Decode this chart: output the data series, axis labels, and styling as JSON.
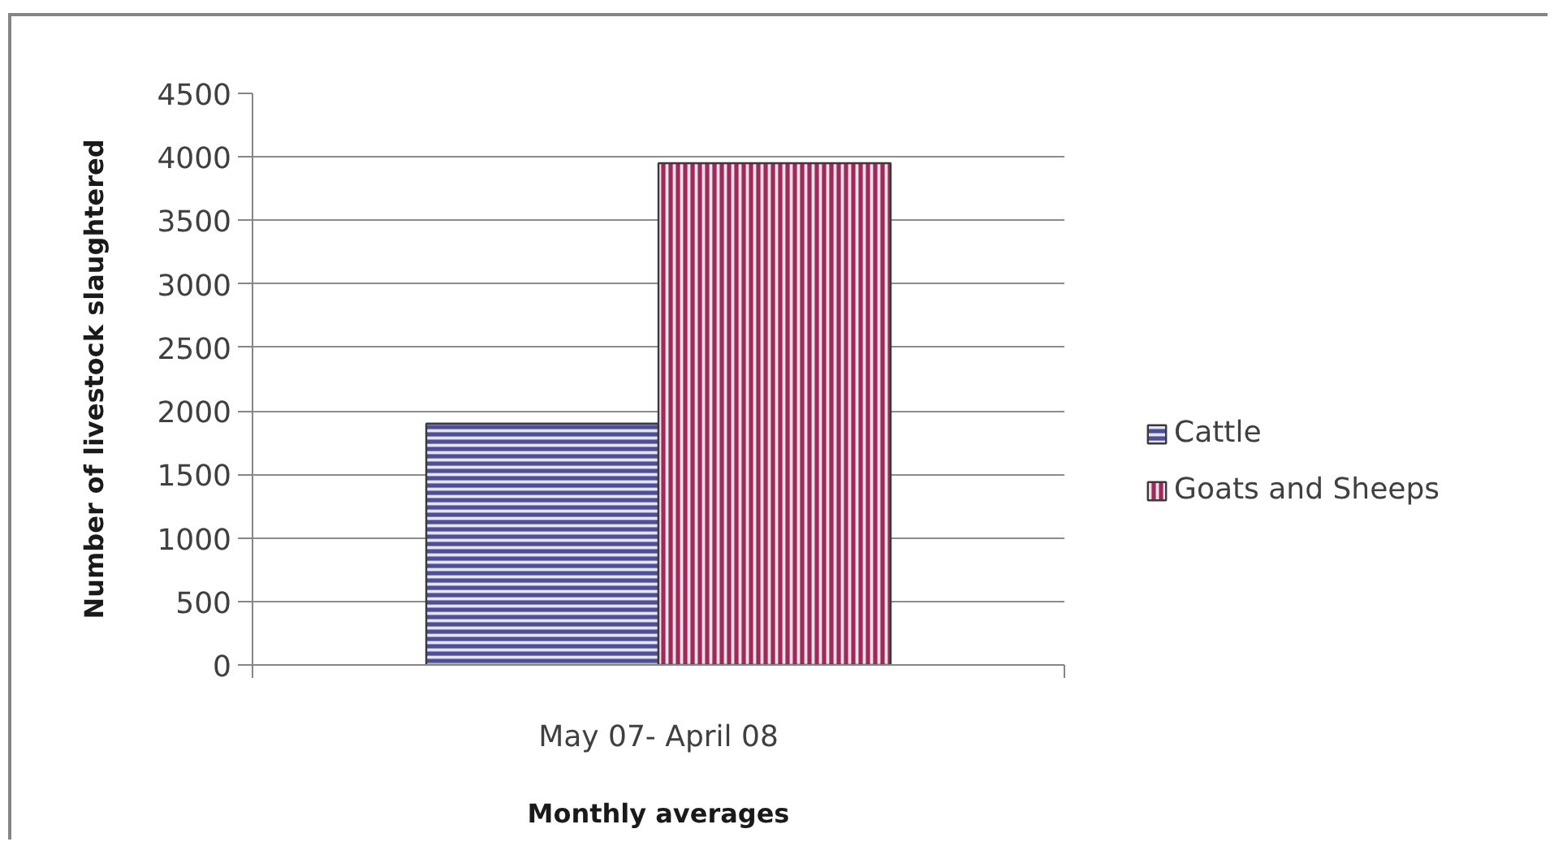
{
  "chart_data": {
    "type": "bar",
    "xlabel": "Monthly averages",
    "ylabel": "Number of livestock slaughtered",
    "categories": [
      "May 07- April 08"
    ],
    "series": [
      {
        "name": "Cattle",
        "color": "#4f4f96",
        "values": [
          1900
        ]
      },
      {
        "name": "Goats and Sheeps",
        "color": "#9e2a5c",
        "values": [
          3950
        ]
      }
    ],
    "ylim": [
      0,
      4500
    ],
    "yticks": [
      0,
      500,
      1000,
      1500,
      2000,
      2500,
      3000,
      3500,
      4000,
      4500
    ],
    "grid": "y",
    "legend": "right"
  }
}
